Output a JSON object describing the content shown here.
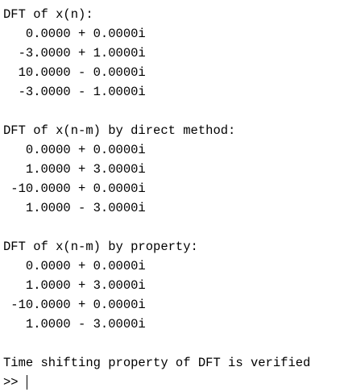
{
  "console": {
    "sections": [
      {
        "title": "DFT of x(n):",
        "values": [
          "   0.0000 + 0.0000i",
          "  -3.0000 + 1.0000i",
          "  10.0000 - 0.0000i",
          "  -3.0000 - 1.0000i"
        ]
      },
      {
        "title": "DFT of x(n-m) by direct method:",
        "values": [
          "   0.0000 + 0.0000i",
          "   1.0000 + 3.0000i",
          " -10.0000 + 0.0000i",
          "   1.0000 - 3.0000i"
        ]
      },
      {
        "title": "DFT of x(n-m) by property:",
        "values": [
          "   0.0000 + 0.0000i",
          "   1.0000 + 3.0000i",
          " -10.0000 + 0.0000i",
          "   1.0000 - 3.0000i"
        ]
      }
    ],
    "message": "Time shifting property of DFT is verified",
    "prompt": ">>"
  }
}
